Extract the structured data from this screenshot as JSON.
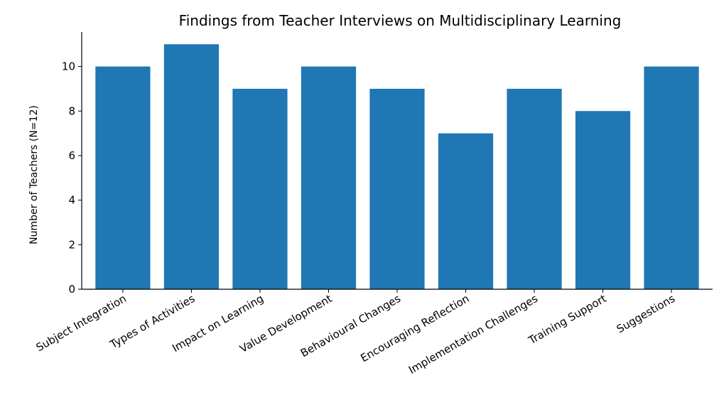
{
  "chart_data": {
    "type": "bar",
    "title": "Findings from Teacher Interviews on Multidisciplinary Learning",
    "xlabel": "",
    "ylabel": "Number of Teachers (N=12)",
    "categories": [
      "Subject Integration",
      "Types of Activities",
      "Impact on Learning",
      "Value Development",
      "Behavioural Changes",
      "Encouraging Reflection",
      "Implementation Challenges",
      "Training Support",
      "Suggestions"
    ],
    "values": [
      10,
      11,
      9,
      10,
      9,
      7,
      9,
      8,
      10
    ],
    "ylim": [
      0,
      11.55
    ],
    "yticks": [
      0,
      2,
      4,
      6,
      8,
      10
    ],
    "bar_color": "#1f77b4",
    "grid": false
  }
}
